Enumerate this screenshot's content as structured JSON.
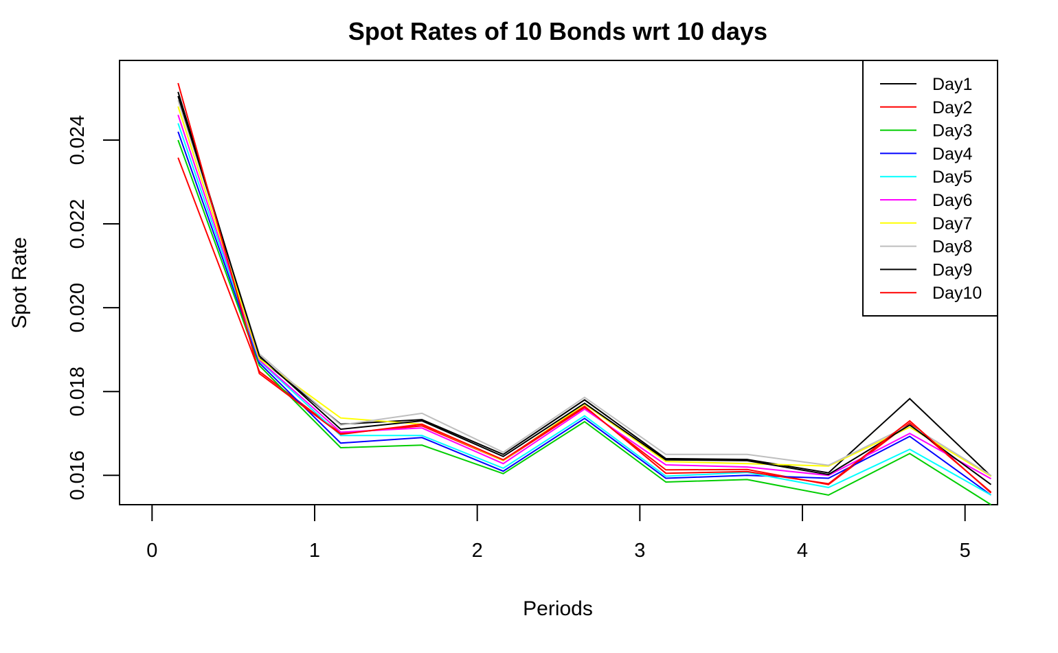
{
  "chart_data": {
    "type": "line",
    "title": "Spot Rates of 10 Bonds wrt 10 days",
    "xlabel": "Periods",
    "ylabel": "Spot Rate",
    "xlim": [
      -0.2,
      5.2
    ],
    "ylim": [
      0.0153,
      0.0259
    ],
    "xticks": [
      0,
      1,
      2,
      3,
      4,
      5
    ],
    "xtick_labels": [
      "0",
      "1",
      "2",
      "3",
      "4",
      "5"
    ],
    "yticks": [
      0.016,
      0.018,
      0.02,
      0.022,
      0.024
    ],
    "ytick_labels": [
      "0.016",
      "0.018",
      "0.020",
      "0.022",
      "0.024"
    ],
    "grid": false,
    "legend_position": "top-right",
    "x": [
      0.16,
      0.66,
      1.16,
      1.66,
      2.16,
      2.66,
      3.16,
      3.66,
      4.16,
      4.66,
      5.16
    ],
    "series": [
      {
        "name": "Day1",
        "color": "#000000",
        "values": [
          0.02515,
          0.0188,
          0.01722,
          0.01733,
          0.0165,
          0.0178,
          0.0164,
          0.01638,
          0.01606,
          0.01783,
          0.01598
        ]
      },
      {
        "name": "Day2",
        "color": "#FF0000",
        "values": [
          0.02358,
          0.01848,
          0.017,
          0.01718,
          0.01635,
          0.01762,
          0.01613,
          0.01614,
          0.01578,
          0.01725,
          0.0156
        ]
      },
      {
        "name": "Day3",
        "color": "#00CD00",
        "values": [
          0.024,
          0.01862,
          0.01666,
          0.01672,
          0.01604,
          0.01728,
          0.01584,
          0.0159,
          0.01553,
          0.01652,
          0.0153
        ]
      },
      {
        "name": "Day4",
        "color": "#0000FF",
        "values": [
          0.0242,
          0.01868,
          0.01677,
          0.0169,
          0.0161,
          0.01736,
          0.01593,
          0.016,
          0.01593,
          0.01693,
          0.01553
        ]
      },
      {
        "name": "Day5",
        "color": "#00FFFF",
        "values": [
          0.0244,
          0.01873,
          0.01695,
          0.01695,
          0.01617,
          0.01742,
          0.01598,
          0.01607,
          0.01571,
          0.01662,
          0.01553
        ]
      },
      {
        "name": "Day6",
        "color": "#FF00FF",
        "values": [
          0.0246,
          0.01875,
          0.01703,
          0.01713,
          0.01628,
          0.01758,
          0.01625,
          0.0162,
          0.016,
          0.017,
          0.01592
        ]
      },
      {
        "name": "Day7",
        "color": "#FFFF00",
        "values": [
          0.0248,
          0.01878,
          0.01737,
          0.01722,
          0.01635,
          0.0177,
          0.01633,
          0.01628,
          0.01622,
          0.01715,
          0.01598
        ]
      },
      {
        "name": "Day8",
        "color": "#BEBEBE",
        "values": [
          0.02495,
          0.0189,
          0.0172,
          0.01748,
          0.01655,
          0.01786,
          0.0165,
          0.0165,
          0.01624,
          0.0172,
          0.016
        ]
      },
      {
        "name": "Day9",
        "color": "#000000",
        "values": [
          0.02505,
          0.01885,
          0.0171,
          0.0173,
          0.01645,
          0.01772,
          0.01637,
          0.01635,
          0.01602,
          0.0172,
          0.01578
        ]
      },
      {
        "name": "Day10",
        "color": "#FF0000",
        "values": [
          0.02536,
          0.01843,
          0.01698,
          0.01722,
          0.01637,
          0.01765,
          0.01605,
          0.01609,
          0.0158,
          0.0173,
          0.01558
        ]
      }
    ]
  }
}
